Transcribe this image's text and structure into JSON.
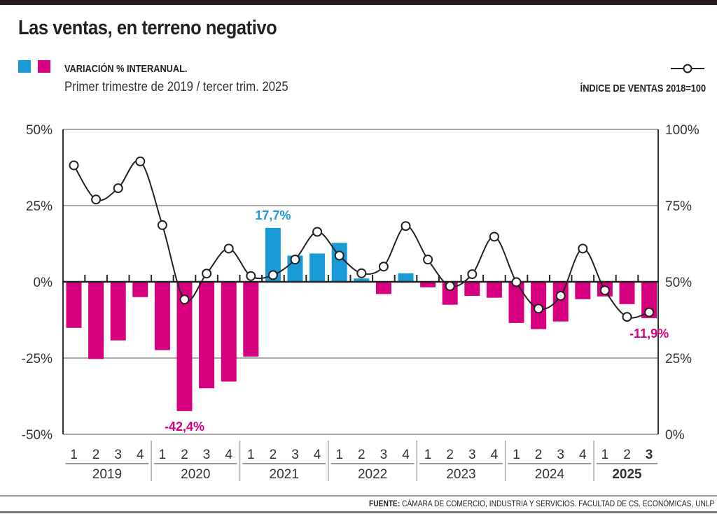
{
  "title": "Las ventas, en terreno negativo",
  "legend": {
    "bars_label": "VARIACIÓN % INTERANUAL.",
    "subtitle": "Primer trimestre de 2019 / tercer trim. 2025",
    "line_label": "ÍNDICE DE VENTAS 2018=100",
    "positive_color": "#1a9ad6",
    "negative_color": "#d6007e",
    "line_color": "#222222"
  },
  "footer": {
    "source_label": "FUENTE:",
    "source_text": " CÁMARA DE COMERCIO, INDUSTRIA Y SERVICIOS. FACULTAD DE CS. ECONÓMICAS, UNLP"
  },
  "chart_data": {
    "type": "bar+line",
    "left_axis": {
      "ylim": [
        -50,
        50
      ],
      "ticks": [
        "50%",
        "25%",
        "0%",
        "-25%",
        "-50%"
      ],
      "tick_values": [
        50,
        25,
        0,
        -25,
        -50
      ]
    },
    "right_axis": {
      "ylim": [
        0,
        100
      ],
      "ticks": [
        "100%",
        "75%",
        "50%",
        "25%",
        "0%"
      ],
      "tick_values": [
        100,
        75,
        50,
        25,
        0
      ]
    },
    "grid": true,
    "years": [
      "2019",
      "2020",
      "2021",
      "2022",
      "2023",
      "2024",
      "2025"
    ],
    "quarters": [
      [
        "1",
        "2",
        "3",
        "4"
      ],
      [
        "1",
        "2",
        "3",
        "4"
      ],
      [
        "1",
        "2",
        "3",
        "4"
      ],
      [
        "1",
        "2",
        "3",
        "4"
      ],
      [
        "1",
        "2",
        "3",
        "4"
      ],
      [
        "1",
        "2",
        "3",
        "4"
      ],
      [
        "1",
        "2",
        "3"
      ]
    ],
    "bars": {
      "name": "VARIACIÓN % INTERANUAL.",
      "values": [
        -15.1,
        -25.3,
        -19.2,
        -5.0,
        -22.4,
        -42.4,
        -34.9,
        -32.7,
        -24.5,
        17.7,
        8.6,
        9.3,
        12.8,
        1.1,
        -4.0,
        2.8,
        -1.8,
        -7.5,
        -4.6,
        -5.2,
        -13.5,
        -15.5,
        -13.0,
        -5.7,
        -4.8,
        -7.3,
        -11.9
      ]
    },
    "line": {
      "name": "ÍNDICE DE VENTAS 2018=100",
      "values": [
        88.2,
        77.0,
        80.7,
        89.5,
        68.6,
        44.2,
        52.7,
        60.9,
        51.9,
        52.2,
        57.3,
        66.4,
        58.6,
        52.8,
        55.0,
        68.3,
        57.3,
        48.6,
        52.5,
        64.8,
        49.9,
        41.2,
        45.4,
        60.9,
        47.2,
        38.5,
        40.0
      ]
    },
    "annotations": [
      {
        "index": 5,
        "text": "-42,4%"
      },
      {
        "index": 9,
        "text": "17,7%"
      },
      {
        "index": 26,
        "text": "-11,9%"
      }
    ]
  }
}
